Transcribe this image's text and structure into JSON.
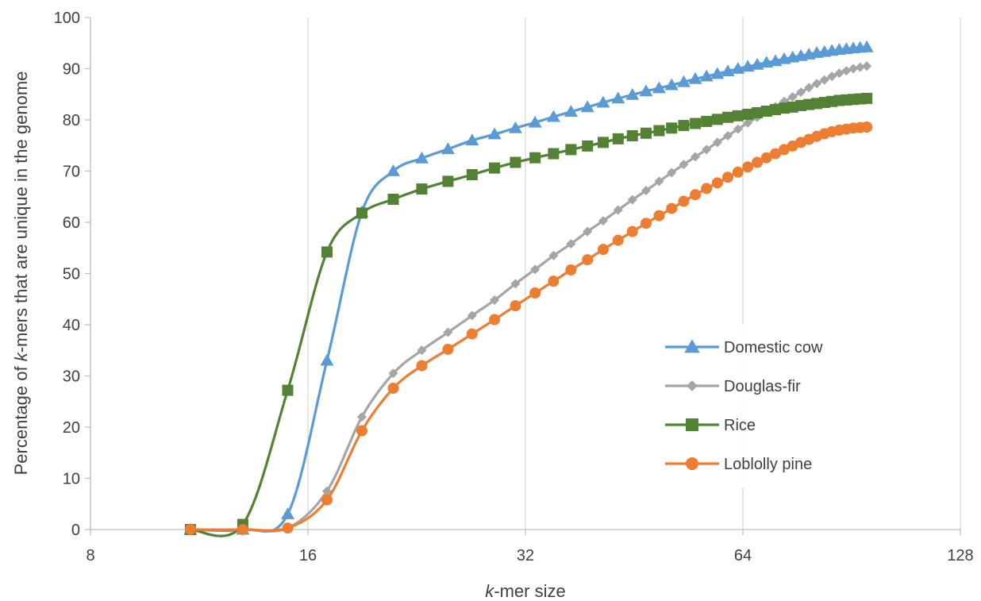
{
  "chart_data": {
    "type": "line",
    "xlabel_italic": "k",
    "xlabel_rest": "-mer size",
    "ylabel_pre": "Percentage of ",
    "ylabel_italic": "k",
    "ylabel_post": "-mers that are unique in the genome",
    "x_scale": "log2",
    "xlim": [
      8,
      128
    ],
    "ylim": [
      0,
      100
    ],
    "x_ticks": [
      8,
      16,
      32,
      64,
      128
    ],
    "x_tick_labels": [
      "8",
      "16",
      "32",
      "64",
      "128"
    ],
    "y_ticks": [
      0,
      10,
      20,
      30,
      40,
      50,
      60,
      70,
      80,
      90,
      100
    ],
    "y_tick_labels": [
      "0",
      "10",
      "20",
      "30",
      "40",
      "50",
      "60",
      "70",
      "80",
      "90",
      "100"
    ],
    "grid": "vertical",
    "legend_position": "right, lower middle",
    "series": [
      {
        "name": "Domestic cow",
        "color": "#5b9bd5",
        "marker": "triangle",
        "x": [
          11,
          13,
          15,
          17,
          19,
          21,
          23,
          25,
          27,
          29,
          31,
          33,
          35,
          37,
          39,
          41,
          43,
          45,
          47,
          49,
          51,
          53,
          55,
          57,
          59,
          61,
          63,
          65,
          67,
          69,
          71,
          73,
          75,
          77,
          79,
          81,
          83,
          85,
          87,
          89,
          91,
          93,
          95
        ],
        "y": [
          0,
          0,
          3,
          33,
          62,
          70,
          72.5,
          74.3,
          76,
          77.2,
          78.4,
          79.5,
          80.6,
          81.6,
          82.5,
          83.4,
          84.2,
          84.9,
          85.6,
          86.2,
          86.8,
          87.4,
          88,
          88.5,
          89,
          89.5,
          90,
          90.4,
          90.8,
          91.2,
          91.5,
          91.9,
          92.2,
          92.5,
          92.8,
          93.1,
          93.3,
          93.5,
          93.7,
          93.85,
          94,
          94.1,
          94.2
        ]
      },
      {
        "name": "Douglas-fir",
        "color": "#a5a5a5",
        "marker": "diamond",
        "x": [
          11,
          13,
          15,
          17,
          19,
          21,
          23,
          25,
          27,
          29,
          31,
          33,
          35,
          37,
          39,
          41,
          43,
          45,
          47,
          49,
          51,
          53,
          55,
          57,
          59,
          61,
          63,
          65,
          67,
          69,
          71,
          73,
          75,
          77,
          79,
          81,
          83,
          85,
          87,
          89,
          91,
          93,
          95
        ],
        "y": [
          0,
          0,
          0.3,
          7.5,
          22,
          30.5,
          35,
          38.5,
          41.8,
          44.8,
          48,
          50.8,
          53.5,
          55.8,
          58.2,
          60.3,
          62.4,
          64.4,
          66.2,
          68,
          69.7,
          71.3,
          72.8,
          74.2,
          75.6,
          76.9,
          78.2,
          79.4,
          80.5,
          81.6,
          82.6,
          83.6,
          84.5,
          85.4,
          86.3,
          87.1,
          87.8,
          88.5,
          89.1,
          89.6,
          90,
          90.3,
          90.5
        ]
      },
      {
        "name": "Rice",
        "color": "#548235",
        "marker": "square",
        "x": [
          11,
          13,
          15,
          17,
          19,
          21,
          23,
          25,
          27,
          29,
          31,
          33,
          35,
          37,
          39,
          41,
          43,
          45,
          47,
          49,
          51,
          53,
          55,
          57,
          59,
          61,
          63,
          65,
          67,
          69,
          71,
          73,
          75,
          77,
          79,
          81,
          83,
          85,
          87,
          89,
          91,
          93,
          95
        ],
        "y": [
          0,
          1,
          27.2,
          54.2,
          61.8,
          64.5,
          66.5,
          68,
          69.3,
          70.6,
          71.7,
          72.6,
          73.4,
          74.2,
          74.9,
          75.6,
          76.3,
          76.9,
          77.4,
          77.9,
          78.4,
          78.9,
          79.3,
          79.7,
          80.1,
          80.5,
          80.8,
          81.1,
          81.4,
          81.7,
          82,
          82.3,
          82.5,
          82.8,
          83,
          83.2,
          83.4,
          83.6,
          83.8,
          83.9,
          84,
          84.1,
          84.2
        ]
      },
      {
        "name": "Loblolly pine",
        "color": "#ed7d31",
        "marker": "circle",
        "x": [
          11,
          13,
          15,
          17,
          19,
          21,
          23,
          25,
          27,
          29,
          31,
          33,
          35,
          37,
          39,
          41,
          43,
          45,
          47,
          49,
          51,
          53,
          55,
          57,
          59,
          61,
          63,
          65,
          67,
          69,
          71,
          73,
          75,
          77,
          79,
          81,
          83,
          85,
          87,
          89,
          91,
          93,
          95
        ],
        "y": [
          0,
          0,
          0.3,
          5.8,
          19.3,
          27.6,
          32,
          35.2,
          38.2,
          41,
          43.7,
          46.2,
          48.5,
          50.7,
          52.7,
          54.7,
          56.5,
          58.2,
          59.8,
          61.3,
          62.7,
          64.1,
          65.4,
          66.6,
          67.7,
          68.8,
          69.8,
          70.8,
          71.7,
          72.6,
          73.4,
          74.2,
          74.9,
          75.6,
          76.2,
          76.8,
          77.3,
          77.7,
          78,
          78.2,
          78.4,
          78.5,
          78.6
        ]
      }
    ]
  }
}
